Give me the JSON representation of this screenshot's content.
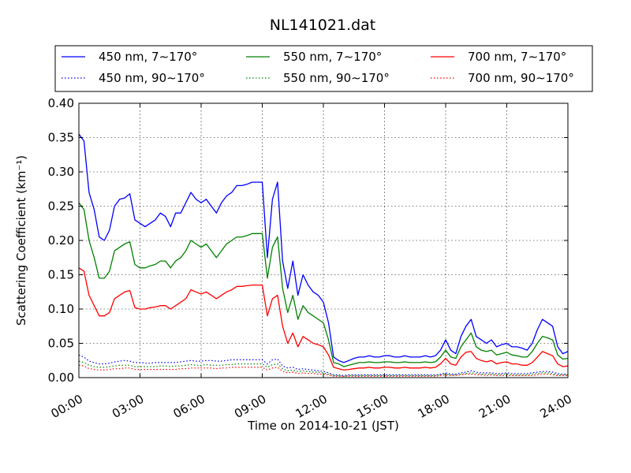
{
  "chart_data": {
    "type": "line",
    "title": "NL141021.dat",
    "xlabel": "Time on 2014-10-21 (JST)",
    "ylabel": "Scattering Coefficient (km⁻¹)",
    "xlim": [
      0,
      24
    ],
    "ylim": [
      0,
      0.4
    ],
    "xticks": [
      0,
      3,
      6,
      9,
      12,
      15,
      18,
      21,
      24
    ],
    "xtick_labels": [
      "00:00",
      "03:00",
      "06:00",
      "09:00",
      "12:00",
      "15:00",
      "18:00",
      "21:00",
      "24:00"
    ],
    "yticks": [
      0,
      0.05,
      0.1,
      0.15,
      0.2,
      0.25,
      0.3,
      0.35,
      0.4
    ],
    "ytick_labels": [
      "0.00",
      "0.05",
      "0.10",
      "0.15",
      "0.20",
      "0.25",
      "0.30",
      "0.35",
      "0.40"
    ],
    "grid": true,
    "legend_position": "top",
    "x": [
      0.0,
      0.25,
      0.5,
      0.75,
      1.0,
      1.25,
      1.5,
      1.75,
      2.0,
      2.25,
      2.5,
      2.75,
      3.0,
      3.25,
      3.5,
      3.75,
      4.0,
      4.25,
      4.5,
      4.75,
      5.0,
      5.25,
      5.5,
      5.75,
      6.0,
      6.25,
      6.5,
      6.75,
      7.0,
      7.25,
      7.5,
      7.75,
      8.0,
      8.25,
      8.5,
      8.75,
      9.0,
      9.25,
      9.5,
      9.75,
      10.0,
      10.25,
      10.5,
      10.75,
      11.0,
      11.25,
      11.5,
      11.75,
      12.0,
      12.25,
      12.5,
      12.75,
      13.0,
      13.25,
      13.5,
      13.75,
      14.0,
      14.25,
      14.5,
      14.75,
      15.0,
      15.25,
      15.5,
      15.75,
      16.0,
      16.25,
      16.5,
      16.75,
      17.0,
      17.25,
      17.5,
      17.75,
      18.0,
      18.25,
      18.5,
      18.75,
      19.0,
      19.25,
      19.5,
      19.75,
      20.0,
      20.25,
      20.5,
      20.75,
      21.0,
      21.25,
      21.5,
      21.75,
      22.0,
      22.25,
      22.5,
      22.75,
      23.0,
      23.25,
      23.5,
      23.75,
      24.0
    ],
    "series": [
      {
        "name": "450 nm, 7∼170°",
        "color": "#0000ff",
        "style": "solid",
        "values": [
          0.355,
          0.345,
          0.27,
          0.245,
          0.205,
          0.2,
          0.215,
          0.25,
          0.26,
          0.262,
          0.268,
          0.23,
          0.225,
          0.22,
          0.225,
          0.23,
          0.24,
          0.235,
          0.22,
          0.24,
          0.24,
          0.255,
          0.27,
          0.26,
          0.255,
          0.26,
          0.25,
          0.24,
          0.255,
          0.265,
          0.27,
          0.28,
          0.28,
          0.282,
          0.285,
          0.285,
          0.285,
          0.175,
          0.26,
          0.285,
          0.17,
          0.13,
          0.17,
          0.12,
          0.15,
          0.135,
          0.125,
          0.12,
          0.11,
          0.08,
          0.03,
          0.025,
          0.022,
          0.025,
          0.028,
          0.03,
          0.03,
          0.032,
          0.03,
          0.03,
          0.032,
          0.032,
          0.03,
          0.03,
          0.032,
          0.03,
          0.03,
          0.03,
          0.032,
          0.03,
          0.032,
          0.04,
          0.055,
          0.04,
          0.035,
          0.06,
          0.075,
          0.085,
          0.06,
          0.055,
          0.05,
          0.055,
          0.045,
          0.048,
          0.05,
          0.045,
          0.045,
          0.043,
          0.04,
          0.05,
          0.07,
          0.085,
          0.08,
          0.075,
          0.045,
          0.035,
          0.038
        ]
      },
      {
        "name": "450 nm, 90∼170°",
        "color": "#0000ff",
        "style": "dotted",
        "values": [
          0.033,
          0.03,
          0.024,
          0.022,
          0.02,
          0.02,
          0.021,
          0.023,
          0.024,
          0.025,
          0.024,
          0.022,
          0.022,
          0.021,
          0.021,
          0.022,
          0.022,
          0.022,
          0.022,
          0.022,
          0.023,
          0.024,
          0.025,
          0.024,
          0.024,
          0.025,
          0.025,
          0.024,
          0.024,
          0.025,
          0.026,
          0.026,
          0.026,
          0.026,
          0.026,
          0.026,
          0.026,
          0.02,
          0.026,
          0.027,
          0.017,
          0.014,
          0.015,
          0.012,
          0.013,
          0.012,
          0.011,
          0.01,
          0.009,
          0.007,
          0.004,
          0.004,
          0.003,
          0.004,
          0.004,
          0.004,
          0.004,
          0.004,
          0.004,
          0.004,
          0.004,
          0.004,
          0.004,
          0.004,
          0.004,
          0.004,
          0.004,
          0.004,
          0.004,
          0.004,
          0.004,
          0.005,
          0.007,
          0.005,
          0.005,
          0.007,
          0.008,
          0.01,
          0.008,
          0.007,
          0.007,
          0.007,
          0.006,
          0.006,
          0.007,
          0.006,
          0.006,
          0.006,
          0.006,
          0.007,
          0.008,
          0.009,
          0.009,
          0.008,
          0.006,
          0.005,
          0.005
        ]
      },
      {
        "name": "550 nm, 7∼170°",
        "color": "#008000",
        "style": "solid",
        "values": [
          0.255,
          0.245,
          0.2,
          0.175,
          0.145,
          0.145,
          0.155,
          0.185,
          0.19,
          0.195,
          0.198,
          0.165,
          0.16,
          0.16,
          0.163,
          0.165,
          0.17,
          0.17,
          0.16,
          0.17,
          0.175,
          0.185,
          0.2,
          0.195,
          0.19,
          0.195,
          0.185,
          0.175,
          0.185,
          0.195,
          0.2,
          0.205,
          0.205,
          0.207,
          0.21,
          0.21,
          0.21,
          0.145,
          0.19,
          0.205,
          0.13,
          0.095,
          0.12,
          0.085,
          0.105,
          0.095,
          0.09,
          0.085,
          0.08,
          0.055,
          0.022,
          0.02,
          0.016,
          0.018,
          0.02,
          0.022,
          0.022,
          0.023,
          0.022,
          0.022,
          0.023,
          0.023,
          0.022,
          0.022,
          0.023,
          0.022,
          0.022,
          0.022,
          0.023,
          0.022,
          0.023,
          0.03,
          0.04,
          0.03,
          0.028,
          0.045,
          0.055,
          0.065,
          0.045,
          0.04,
          0.038,
          0.04,
          0.033,
          0.035,
          0.037,
          0.033,
          0.032,
          0.03,
          0.03,
          0.038,
          0.05,
          0.06,
          0.058,
          0.055,
          0.033,
          0.027,
          0.028
        ]
      },
      {
        "name": "550 nm, 90∼170°",
        "color": "#008000",
        "style": "dotted",
        "values": [
          0.024,
          0.022,
          0.018,
          0.016,
          0.015,
          0.015,
          0.016,
          0.017,
          0.018,
          0.018,
          0.018,
          0.016,
          0.016,
          0.016,
          0.016,
          0.016,
          0.017,
          0.017,
          0.016,
          0.017,
          0.017,
          0.018,
          0.019,
          0.018,
          0.018,
          0.019,
          0.018,
          0.018,
          0.018,
          0.019,
          0.019,
          0.02,
          0.02,
          0.02,
          0.02,
          0.02,
          0.02,
          0.015,
          0.019,
          0.02,
          0.013,
          0.01,
          0.011,
          0.009,
          0.01,
          0.009,
          0.008,
          0.008,
          0.007,
          0.005,
          0.003,
          0.003,
          0.002,
          0.003,
          0.003,
          0.003,
          0.003,
          0.003,
          0.003,
          0.003,
          0.003,
          0.003,
          0.003,
          0.003,
          0.003,
          0.003,
          0.003,
          0.003,
          0.003,
          0.003,
          0.003,
          0.004,
          0.005,
          0.004,
          0.004,
          0.005,
          0.006,
          0.007,
          0.006,
          0.005,
          0.005,
          0.005,
          0.004,
          0.005,
          0.005,
          0.004,
          0.004,
          0.004,
          0.004,
          0.005,
          0.006,
          0.007,
          0.007,
          0.006,
          0.004,
          0.004,
          0.004
        ]
      },
      {
        "name": "700 nm, 7∼170°",
        "color": "#ff0000",
        "style": "solid",
        "values": [
          0.16,
          0.155,
          0.12,
          0.105,
          0.09,
          0.09,
          0.095,
          0.115,
          0.12,
          0.125,
          0.127,
          0.102,
          0.1,
          0.1,
          0.102,
          0.103,
          0.105,
          0.105,
          0.1,
          0.105,
          0.11,
          0.115,
          0.128,
          0.125,
          0.122,
          0.125,
          0.12,
          0.115,
          0.12,
          0.125,
          0.128,
          0.133,
          0.133,
          0.134,
          0.135,
          0.135,
          0.135,
          0.09,
          0.115,
          0.12,
          0.075,
          0.05,
          0.065,
          0.045,
          0.06,
          0.055,
          0.05,
          0.048,
          0.045,
          0.033,
          0.015,
          0.013,
          0.011,
          0.012,
          0.013,
          0.014,
          0.014,
          0.015,
          0.014,
          0.014,
          0.015,
          0.015,
          0.014,
          0.014,
          0.015,
          0.014,
          0.014,
          0.014,
          0.015,
          0.014,
          0.015,
          0.02,
          0.028,
          0.02,
          0.018,
          0.03,
          0.037,
          0.038,
          0.028,
          0.025,
          0.023,
          0.025,
          0.02,
          0.022,
          0.023,
          0.02,
          0.02,
          0.018,
          0.018,
          0.022,
          0.03,
          0.038,
          0.035,
          0.032,
          0.02,
          0.016,
          0.017
        ]
      },
      {
        "name": "700 nm, 90∼170°",
        "color": "#ff0000",
        "style": "dotted",
        "values": [
          0.018,
          0.017,
          0.013,
          0.012,
          0.011,
          0.011,
          0.012,
          0.013,
          0.013,
          0.014,
          0.014,
          0.012,
          0.012,
          0.012,
          0.012,
          0.012,
          0.012,
          0.012,
          0.012,
          0.012,
          0.013,
          0.013,
          0.014,
          0.014,
          0.014,
          0.014,
          0.014,
          0.013,
          0.014,
          0.014,
          0.015,
          0.015,
          0.015,
          0.015,
          0.015,
          0.015,
          0.015,
          0.011,
          0.014,
          0.015,
          0.009,
          0.007,
          0.008,
          0.006,
          0.007,
          0.006,
          0.006,
          0.005,
          0.005,
          0.004,
          0.002,
          0.002,
          0.002,
          0.002,
          0.002,
          0.002,
          0.002,
          0.002,
          0.002,
          0.002,
          0.002,
          0.002,
          0.002,
          0.002,
          0.002,
          0.002,
          0.002,
          0.002,
          0.002,
          0.002,
          0.002,
          0.003,
          0.004,
          0.003,
          0.003,
          0.004,
          0.005,
          0.005,
          0.004,
          0.004,
          0.003,
          0.004,
          0.003,
          0.003,
          0.003,
          0.003,
          0.003,
          0.003,
          0.003,
          0.003,
          0.004,
          0.005,
          0.005,
          0.004,
          0.003,
          0.003,
          0.003
        ]
      }
    ]
  }
}
